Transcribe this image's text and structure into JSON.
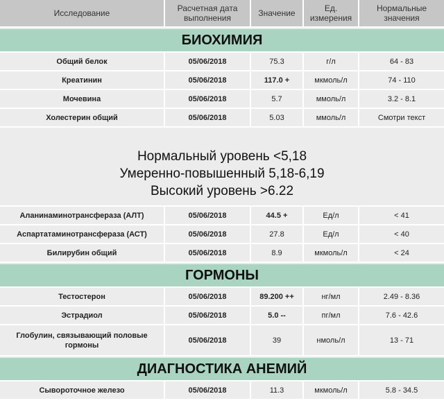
{
  "header": {
    "name": "Исследование",
    "date": "Расчетная дата выполнения",
    "value": "Значение",
    "unit": "Ед. измерения",
    "norm": "Нормальные значения"
  },
  "sections": [
    {
      "title": "БИОХИМИЯ",
      "rows": [
        {
          "name": "Общий белок",
          "date": "05/06/2018",
          "value": "75.3",
          "unit": "г/л",
          "norm": "64 - 83"
        },
        {
          "name": "Креатинин",
          "date": "05/06/2018",
          "value": "117.0 +",
          "unit": "мкмоль/л",
          "norm": "74 - 110"
        },
        {
          "name": "Мочевина",
          "date": "05/06/2018",
          "value": "5.7",
          "unit": "ммоль/л",
          "norm": "3.2 - 8.1"
        },
        {
          "name": "Холестерин общий",
          "date": "05/06/2018",
          "value": "5.03",
          "unit": "ммоль/л",
          "norm": "Смотри текст"
        }
      ],
      "note": [
        "Нормальный уровень <5,18",
        "Умеренно-повышенный 5,18-6,19",
        "Высокий уровень >6.22"
      ],
      "rows2": [
        {
          "name": "Аланинаминотрансфераза (АЛТ)",
          "date": "05/06/2018",
          "value": "44.5 +",
          "unit": "Ед/л",
          "norm": "< 41"
        },
        {
          "name": "Аспартатаминотрансфераза (АСТ)",
          "date": "05/06/2018",
          "value": "27.8",
          "unit": "Ед/л",
          "norm": "< 40"
        },
        {
          "name": "Билирубин общий",
          "date": "05/06/2018",
          "value": "8.9",
          "unit": "мкмоль/л",
          "norm": "< 24"
        }
      ]
    },
    {
      "title": "ГОРМОНЫ",
      "rows": [
        {
          "name": "Тестостерон",
          "date": "05/06/2018",
          "value": "89.200 ++",
          "unit": "нг/мл",
          "norm": "2.49 - 8.36"
        },
        {
          "name": "Эстрадиол",
          "date": "05/06/2018",
          "value": "5.0 --",
          "unit": "пг/мл",
          "norm": "7.6 - 42.6"
        },
        {
          "name": "Глобулин, связывающий половые гормоны",
          "date": "05/06/2018",
          "value": "39",
          "unit": "нмоль/л",
          "norm": "13 - 71"
        }
      ]
    },
    {
      "title": "ДИАГНОСТИКА АНЕМИЙ",
      "rows": [
        {
          "name": "Сывороточное железо",
          "date": "05/06/2018",
          "value": "11.3",
          "unit": "мкмоль/л",
          "norm": "5.8 - 34.5"
        }
      ]
    }
  ],
  "colors": {
    "header": "#c6c6c6",
    "section": "#a9d4c1",
    "row": "#ececec"
  }
}
